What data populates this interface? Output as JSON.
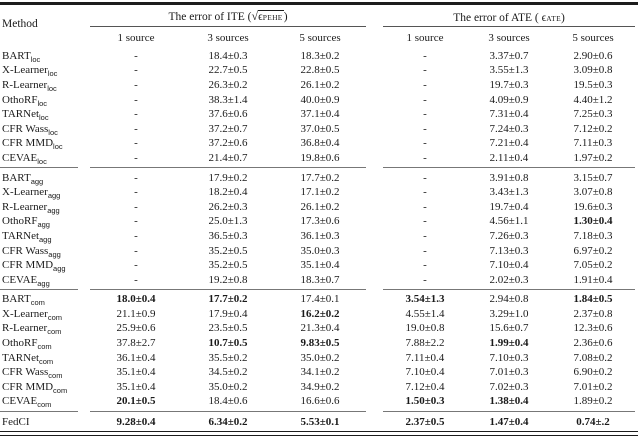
{
  "header": {
    "method_label": "Method",
    "ite_title": {
      "prefix": "The error of ITE (",
      "sqrt_symbol": "√",
      "epsilon": "ϵ",
      "subscript": "PEHE",
      "suffix": ")"
    },
    "ate_title": {
      "prefix": "The error of ATE ( ",
      "epsilon": "ϵ",
      "subscript": "ATE",
      "suffix": ")"
    },
    "subcols": [
      "1 source",
      "3 sources",
      "5 sources"
    ]
  },
  "chart_data": {
    "type": "table",
    "title": "The error of ITE and ATE by number of sources",
    "column_groups": [
      "The error of ITE (sqrt(epsilon_PEHE))",
      "The error of ATE (epsilon_ATE)"
    ],
    "columns": [
      "1 source",
      "3 sources",
      "5 sources",
      "1 source",
      "3 sources",
      "5 sources"
    ]
  },
  "groups": [
    {
      "name": "loc",
      "rows": [
        {
          "method": "BART",
          "sub": "loc",
          "cells": [
            "-",
            "18.4±0.3",
            "18.3±0.2",
            "-",
            "3.37±0.7",
            "2.90±0.6"
          ],
          "bold": []
        },
        {
          "method": "X-Learner",
          "sub": "loc",
          "cells": [
            "-",
            "22.7±0.5",
            "22.8±0.5",
            "-",
            "3.55±1.3",
            "3.09±0.8"
          ],
          "bold": []
        },
        {
          "method": "R-Learner",
          "sub": "loc",
          "cells": [
            "-",
            "26.3±0.2",
            "26.1±0.2",
            "-",
            "19.7±0.3",
            "19.5±0.3"
          ],
          "bold": []
        },
        {
          "method": "OthoRF",
          "sub": "loc",
          "cells": [
            "-",
            "38.3±1.4",
            "40.0±0.9",
            "-",
            "4.09±0.9",
            "4.40±1.2"
          ],
          "bold": []
        },
        {
          "method": "TARNet",
          "sub": "loc",
          "cells": [
            "-",
            "37.6±0.6",
            "37.1±0.4",
            "-",
            "7.31±0.4",
            "7.25±0.3"
          ],
          "bold": []
        },
        {
          "method": "CFR Wass",
          "sub": "loc",
          "cells": [
            "-",
            "37.2±0.7",
            "37.0±0.5",
            "-",
            "7.24±0.3",
            "7.12±0.2"
          ],
          "bold": []
        },
        {
          "method": "CFR MMD",
          "sub": "loc",
          "cells": [
            "-",
            "37.2±0.6",
            "36.8±0.4",
            "-",
            "7.21±0.4",
            "7.11±0.3"
          ],
          "bold": []
        },
        {
          "method": "CEVAE",
          "sub": "loc",
          "cells": [
            "-",
            "21.4±0.7",
            "19.8±0.6",
            "-",
            "2.11±0.4",
            "1.97±0.2"
          ],
          "bold": []
        }
      ]
    },
    {
      "name": "agg",
      "rows": [
        {
          "method": "BART",
          "sub": "agg",
          "cells": [
            "-",
            "17.9±0.2",
            "17.7±0.2",
            "-",
            "3.91±0.8",
            "3.15±0.7"
          ],
          "bold": []
        },
        {
          "method": "X-Learner",
          "sub": "agg",
          "cells": [
            "-",
            "18.2±0.4",
            "17.1±0.2",
            "-",
            "3.43±1.3",
            "3.07±0.8"
          ],
          "bold": []
        },
        {
          "method": "R-Learner",
          "sub": "agg",
          "cells": [
            "-",
            "26.2±0.3",
            "26.1±0.2",
            "-",
            "19.7±0.4",
            "19.6±0.3"
          ],
          "bold": []
        },
        {
          "method": "OthoRF",
          "sub": "agg",
          "cells": [
            "-",
            "25.0±1.3",
            "17.3±0.6",
            "-",
            "4.56±1.1",
            "1.30±0.4"
          ],
          "bold": [
            5
          ]
        },
        {
          "method": "TARNet",
          "sub": "agg",
          "cells": [
            "-",
            "36.5±0.3",
            "36.1±0.3",
            "-",
            "7.26±0.3",
            "7.18±0.3"
          ],
          "bold": []
        },
        {
          "method": "CFR Wass",
          "sub": "agg",
          "cells": [
            "-",
            "35.2±0.5",
            "35.0±0.3",
            "-",
            "7.13±0.3",
            "6.97±0.2"
          ],
          "bold": []
        },
        {
          "method": "CFR MMD",
          "sub": "agg",
          "cells": [
            "-",
            "35.2±0.5",
            "35.1±0.4",
            "-",
            "7.10±0.4",
            "7.05±0.2"
          ],
          "bold": []
        },
        {
          "method": "CEVAE",
          "sub": "agg",
          "cells": [
            "-",
            "19.2±0.8",
            "18.3±0.7",
            "-",
            "2.02±0.3",
            "1.91±0.4"
          ],
          "bold": []
        }
      ]
    },
    {
      "name": "com",
      "rows": [
        {
          "method": "BART",
          "sub": "com",
          "cells": [
            "18.0±0.4",
            "17.7±0.2",
            "17.4±0.1",
            "3.54±1.3",
            "2.94±0.8",
            "1.84±0.5"
          ],
          "bold": [
            0,
            1,
            3,
            5
          ]
        },
        {
          "method": "X-Learner",
          "sub": "com",
          "cells": [
            "21.1±0.9",
            "17.9±0.4",
            "16.2±0.2",
            "4.55±1.4",
            "3.29±1.0",
            "2.37±0.8"
          ],
          "bold": [
            2
          ]
        },
        {
          "method": "R-Learner",
          "sub": "com",
          "cells": [
            "25.9±0.6",
            "23.5±0.5",
            "21.3±0.4",
            "19.0±0.8",
            "15.6±0.7",
            "12.3±0.6"
          ],
          "bold": []
        },
        {
          "method": "OthoRF",
          "sub": "com",
          "cells": [
            "37.8±2.7",
            "10.7±0.5",
            "9.83±0.5",
            "7.88±2.2",
            "1.99±0.4",
            "2.36±0.6"
          ],
          "bold": [
            1,
            2,
            4
          ]
        },
        {
          "method": "TARNet",
          "sub": "com",
          "cells": [
            "36.1±0.4",
            "35.5±0.2",
            "35.0±0.2",
            "7.11±0.4",
            "7.10±0.3",
            "7.08±0.2"
          ],
          "bold": []
        },
        {
          "method": "CFR Wass",
          "sub": "com",
          "cells": [
            "35.1±0.4",
            "34.5±0.2",
            "34.1±0.2",
            "7.10±0.4",
            "7.01±0.3",
            "6.90±0.2"
          ],
          "bold": []
        },
        {
          "method": "CFR MMD",
          "sub": "com",
          "cells": [
            "35.1±0.4",
            "35.0±0.2",
            "34.9±0.2",
            "7.12±0.4",
            "7.02±0.3",
            "7.01±0.2"
          ],
          "bold": []
        },
        {
          "method": "CEVAE",
          "sub": "com",
          "cells": [
            "20.1±0.5",
            "18.4±0.6",
            "16.6±0.6",
            "1.50±0.3",
            "1.38±0.4",
            "1.89±0.2"
          ],
          "bold": [
            0,
            3,
            4
          ]
        }
      ]
    }
  ],
  "fedci": {
    "method": "FedCI",
    "sub": "",
    "cells": [
      "9.28±0.4",
      "6.34±0.2",
      "5.53±0.1",
      "2.37±0.5",
      "1.47±0.4",
      "0.74±.2"
    ],
    "bold": [
      0,
      1,
      2,
      3,
      4,
      5
    ]
  }
}
